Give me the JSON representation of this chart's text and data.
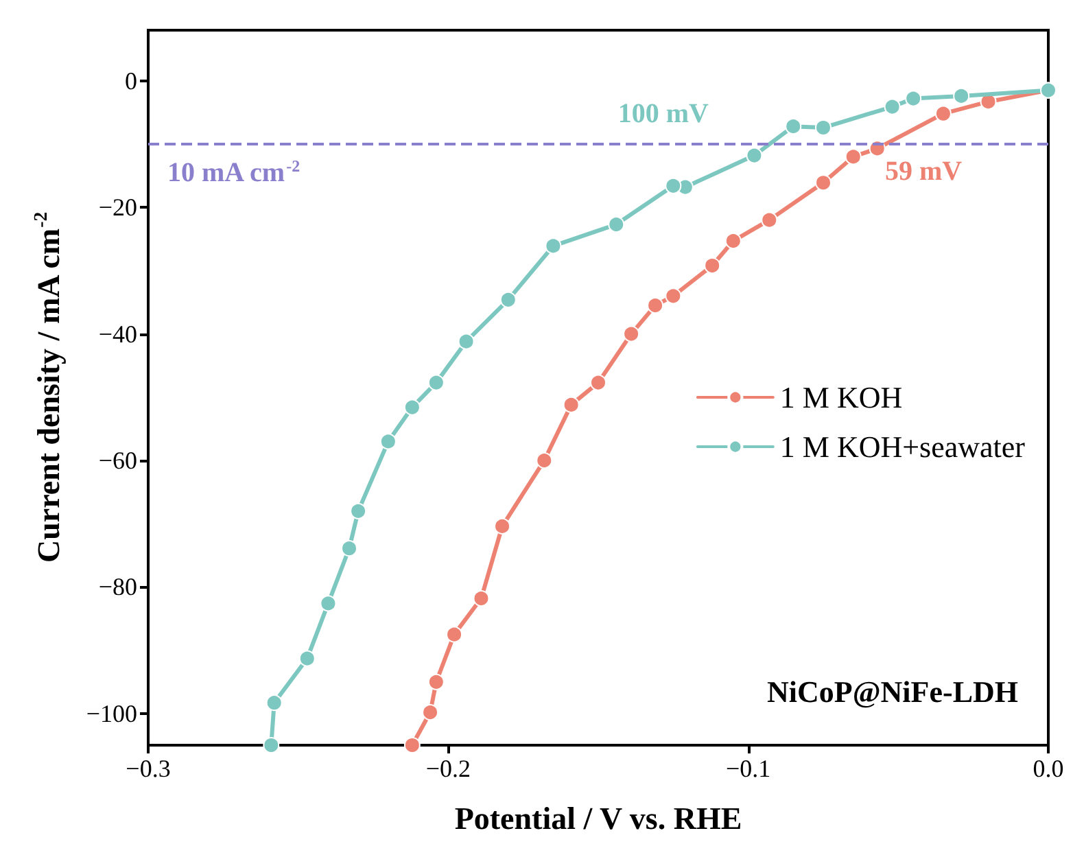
{
  "chart_data": {
    "type": "line",
    "xlabel": "Potential / V vs. RHE",
    "ylabel": "Current density / mA cm$^{-2}$",
    "xlim": [
      -0.3,
      0.0
    ],
    "ylim": [
      -105,
      8
    ],
    "xticks": [
      {
        "value": -0.3,
        "label": "−0.3"
      },
      {
        "value": -0.2,
        "label": "−0.2"
      },
      {
        "value": -0.1,
        "label": "−0.1"
      },
      {
        "value": 0.0,
        "label": "0.0"
      }
    ],
    "yticks": [
      {
        "value": -100,
        "label": "−100"
      },
      {
        "value": -80,
        "label": "−80"
      },
      {
        "value": -60,
        "label": "−60"
      },
      {
        "value": -40,
        "label": "−40"
      },
      {
        "value": -20,
        "label": "−20"
      },
      0
    ],
    "marker": "circle",
    "line_style": "solid",
    "legend": "right",
    "grid": false,
    "series": [
      {
        "name": "1 M KOH",
        "color": "#ee8272",
        "x": [
          0,
          -0.02,
          -0.035,
          -0.057,
          -0.065,
          -0.075,
          -0.093,
          -0.105,
          -0.112,
          -0.125,
          -0.131,
          -0.139,
          -0.15,
          -0.159,
          -0.168,
          -0.182,
          -0.189,
          -0.198,
          -0.204,
          -0.206,
          -0.212
        ],
        "values": [
          -1.5,
          -3.3,
          -5.2,
          -10.7,
          -12,
          -16.1,
          -22,
          -25.3,
          -29.2,
          -34,
          -35.5,
          -40,
          -47.7,
          -51.2,
          -60,
          -70.4,
          -81.8,
          -87.5,
          -95,
          -99.8,
          -105
        ]
      },
      {
        "name": "1 M KOH+seawater",
        "color": "#7cc8c0",
        "x": [
          0,
          -0.029,
          -0.045,
          -0.052,
          -0.075,
          -0.085,
          -0.098,
          -0.121,
          -0.125,
          -0.144,
          -0.165,
          -0.18,
          -0.194,
          -0.204,
          -0.212,
          -0.22,
          -0.23,
          -0.233,
          -0.24,
          -0.247,
          -0.258,
          -0.259
        ],
        "values": [
          -1.5,
          -2.4,
          -2.8,
          -4.1,
          -7.4,
          -7.2,
          -11.8,
          -16.8,
          -16.6,
          -22.7,
          -26.1,
          -34.6,
          -41.2,
          -47.7,
          -51.6,
          -57,
          -68,
          -73.9,
          -82.6,
          -91.3,
          -98.3,
          -105
        ]
      }
    ],
    "ref_lines": [
      {
        "axis": "y",
        "value": -10,
        "label": "10 mA cm$^{-2}$",
        "color": "#8a7fcc",
        "line_style": "dashed"
      }
    ],
    "annotations": [
      {
        "text": "100 mV",
        "x": -0.1,
        "y": -10
      },
      {
        "text": "59 mV",
        "x": -0.059,
        "y": -10
      },
      "NiCoP@NiFe-LDH"
    ]
  }
}
